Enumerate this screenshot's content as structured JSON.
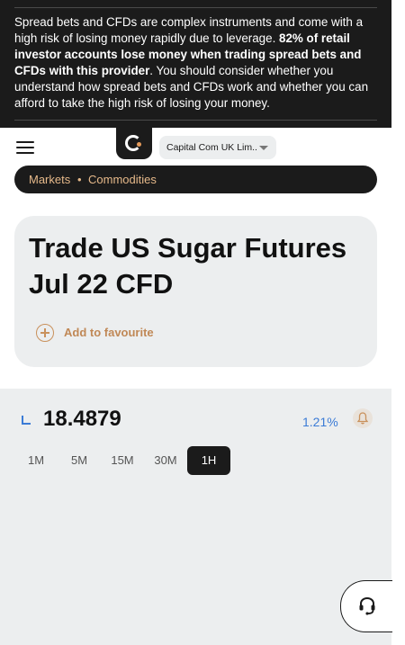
{
  "risk_warning": {
    "part1": "Spread bets and CFDs are complex instruments and come with a high risk of losing money rapidly due to leverage. ",
    "bold": "82% of retail investor accounts lose money when trading spread bets and CFDs with this provider",
    "part2": ". You should consider whether you understand how spread bets and CFDs work and whether you can afford to take the high risk of losing your money."
  },
  "header": {
    "menu_icon": "hamburger-icon",
    "logo_icon": "capital-com-logo",
    "entity_selector": "Capital Com UK Lim...",
    "entity_caret_icon": "caret-down-icon"
  },
  "breadcrumb": {
    "items": [
      "Markets",
      "Commodities"
    ],
    "separator": "•"
  },
  "instrument": {
    "title": "Trade US Sugar Futures Jul 22 CFD",
    "favourite_label": "Add to favourite",
    "favourite_icon": "plus-circle-icon"
  },
  "chart_panel": {
    "price": "18.4879",
    "change": "1.21%",
    "trend_icon": "trend-arrow-icon",
    "alert_icon": "bell-plus-icon",
    "timeframes": [
      "1M",
      "5M",
      "15M",
      "30M",
      "1H"
    ],
    "active_timeframe": "1H"
  },
  "support": {
    "icon": "headset-icon"
  },
  "colors": {
    "dark": "#1b1b1b",
    "accent": "#c9915c",
    "link": "#e6b98a",
    "positive": "#3b7bd6",
    "panel": "#eceeef"
  }
}
